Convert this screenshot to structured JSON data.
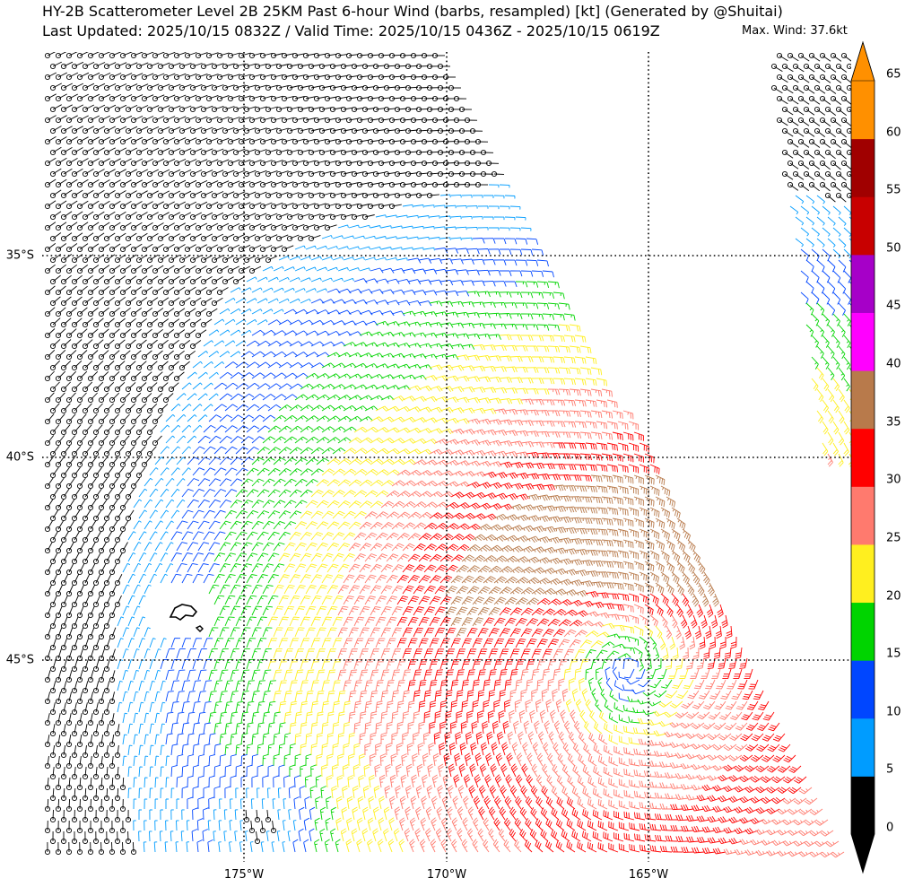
{
  "title": {
    "line1": "HY-2B Scatterometer Level 2B 25KM Past 6-hour Wind (barbs, resampled) [kt] (Generated by @Shuitai)",
    "line2": "Last Updated: 2025/10/15 0832Z / Valid Time: 2025/10/15 0436Z - 2025/10/15 0619Z"
  },
  "max_wind": "Max. Wind: 37.6kt",
  "lat_labels": [
    "35°S",
    "40°S",
    "45°S"
  ],
  "lon_labels": [
    "175°W",
    "170°W",
    "165°W"
  ],
  "colorbar": {
    "unit": "kt",
    "ticks": [
      "0",
      "5",
      "10",
      "15",
      "20",
      "25",
      "30",
      "35",
      "40",
      "45",
      "50",
      "55",
      "60",
      "65"
    ],
    "bins": [
      {
        "min": 0,
        "max": 5,
        "color": "#000000"
      },
      {
        "min": 5,
        "max": 10,
        "color": "#009cff"
      },
      {
        "min": 10,
        "max": 15,
        "color": "#0046ff"
      },
      {
        "min": 15,
        "max": 20,
        "color": "#00d400"
      },
      {
        "min": 20,
        "max": 25,
        "color": "#ffef1f"
      },
      {
        "min": 25,
        "max": 30,
        "color": "#ff7a6e"
      },
      {
        "min": 30,
        "max": 35,
        "color": "#ff0000"
      },
      {
        "min": 35,
        "max": 40,
        "color": "#b87a4b"
      },
      {
        "min": 40,
        "max": 45,
        "color": "#ff00ff"
      },
      {
        "min": 45,
        "max": 50,
        "color": "#a600c8"
      },
      {
        "min": 50,
        "max": 55,
        "color": "#c80000"
      },
      {
        "min": 55,
        "max": 60,
        "color": "#a00000"
      },
      {
        "min": 60,
        "max": 65,
        "color": "#ff9000"
      }
    ],
    "under_color": "#000000",
    "over_color": "#ff9000"
  },
  "map": {
    "lon_range_deg_w": [
      180,
      160
    ],
    "lat_range_deg_s": [
      30,
      50
    ],
    "gridlines": "dotted",
    "wind_field": {
      "description_kind": "cyclone",
      "low_center": {
        "lon_w": 165.5,
        "lat_s": 45.2
      },
      "ambient_max_kt": 37.6
    },
    "colors": {
      "land": "#000000",
      "no_data": "#ffffff",
      "grid": "#000000"
    }
  }
}
